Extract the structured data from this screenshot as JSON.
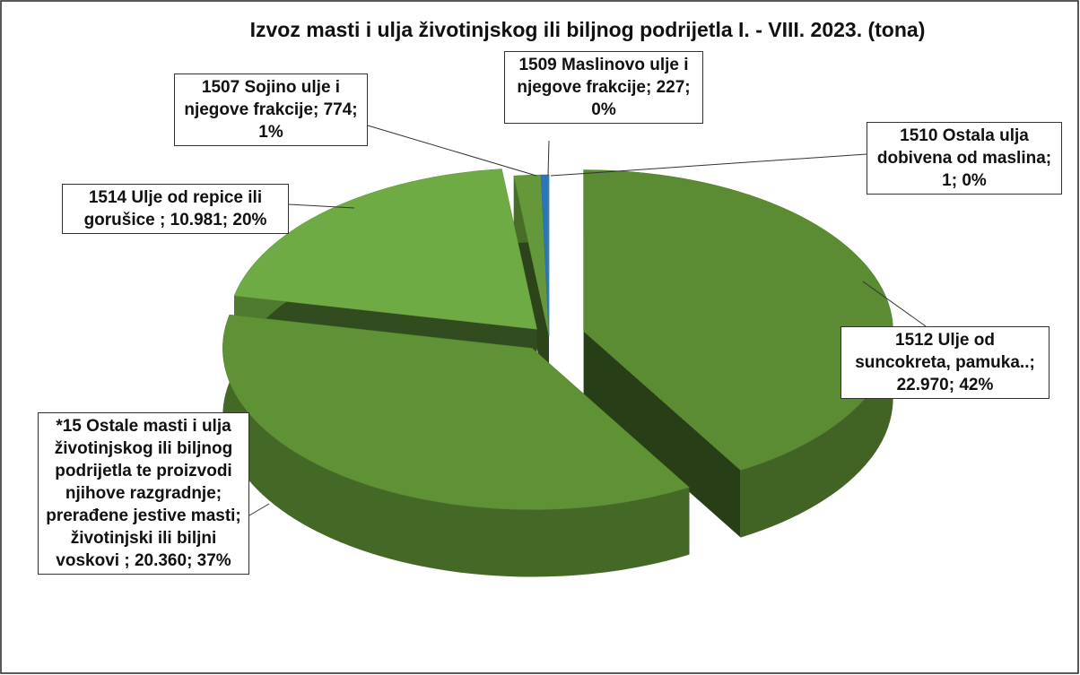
{
  "chart_data": {
    "type": "pie3d",
    "title": "Izvoz masti i ulja životinjskog ili biljnog podrijetla I. - VIII. 2023. (tona)",
    "categories": [
      "1512 Ulje od suncokreta, pamuka..",
      "*15 Ostale masti i ulja životinjskog ili biljnog podrijetla te proizvodi njihove razgradnje; prerađene jestive masti; životinjski ili biljni voskovi ",
      "1514 Ulje od repice ili gorušice ",
      "1507 Sojino ulje i njegove frakcije",
      "1509 Maslinovo ulje i njegove frakcije",
      "1510 Ostala ulja dobivena od maslina"
    ],
    "values": [
      22970,
      20360,
      10981,
      774,
      227,
      1
    ],
    "value_labels": [
      "22.970",
      "20.360",
      "10.981",
      "774",
      "227",
      "1"
    ],
    "percent_labels": [
      "42%",
      "37%",
      "20%",
      "1%",
      "0%",
      "0%"
    ],
    "colors": [
      "#5b8b33",
      "#5f9135",
      "#6fab45",
      "#64983a",
      "#2e75b6",
      "#5b9bd5"
    ]
  }
}
